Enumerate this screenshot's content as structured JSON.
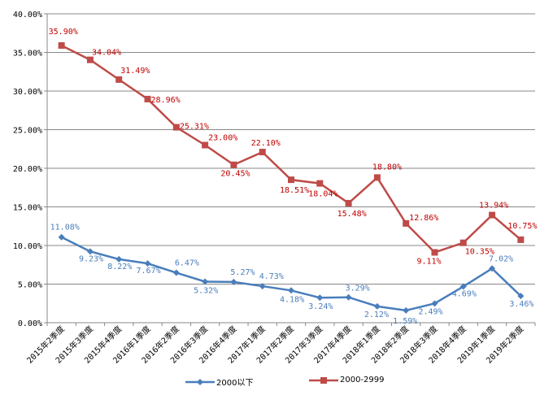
{
  "chart_data": {
    "type": "line",
    "title": "",
    "xlabel": "",
    "ylabel": "",
    "ylim": [
      0,
      40
    ],
    "yticks": [
      "0.00%",
      "5.00%",
      "10.00%",
      "15.00%",
      "20.00%",
      "25.00%",
      "30.00%",
      "35.00%",
      "40.00%"
    ],
    "grid": true,
    "legend_position": "bottom",
    "categories": [
      "2015年2季度",
      "2015年3季度",
      "2015年4季度",
      "2016年1季度",
      "2016年2季度",
      "2016年3季度",
      "2016年4季度",
      "2017年1季度",
      "2017年2季度",
      "2017年3季度",
      "2017年4季度",
      "2018年1季度",
      "2018年2季度",
      "2018年3季度",
      "2018年4季度",
      "2019年1季度",
      "2019年2季度"
    ],
    "series": [
      {
        "name": "2000以下",
        "color": "#4a7ebb",
        "marker": "diamond",
        "values": [
          11.08,
          9.23,
          8.22,
          7.67,
          6.47,
          5.32,
          5.27,
          4.73,
          4.18,
          3.24,
          3.29,
          2.12,
          1.59,
          2.49,
          4.69,
          7.02,
          3.46
        ],
        "labels": [
          "11.08%",
          "9.23%",
          "8.22%",
          "7.67%",
          "6.47%",
          "5.32%",
          "5.27%",
          "4.73%",
          "4.18%",
          "3.24%",
          "3.29%",
          "2.12%",
          "1.59%",
          "2.49%",
          "4.69%",
          "7.02%",
          "3.46%"
        ]
      },
      {
        "name": "2000-2999",
        "color": "#be4b48",
        "marker": "square",
        "values": [
          35.9,
          34.04,
          31.49,
          28.96,
          25.31,
          23.0,
          20.45,
          22.1,
          18.51,
          18.04,
          15.48,
          18.8,
          12.86,
          9.11,
          10.35,
          13.94,
          10.75
        ],
        "labels": [
          "35.90%",
          "34.04%",
          "31.49%",
          "28.96%",
          "25.31%",
          "23.00%",
          "20.45%",
          "22.10%",
          "18.51%",
          "18.04%",
          "15.48%",
          "18.80%",
          "12.86%",
          "9.11%",
          "10.35%",
          "13.94%",
          "10.75%"
        ]
      }
    ]
  }
}
